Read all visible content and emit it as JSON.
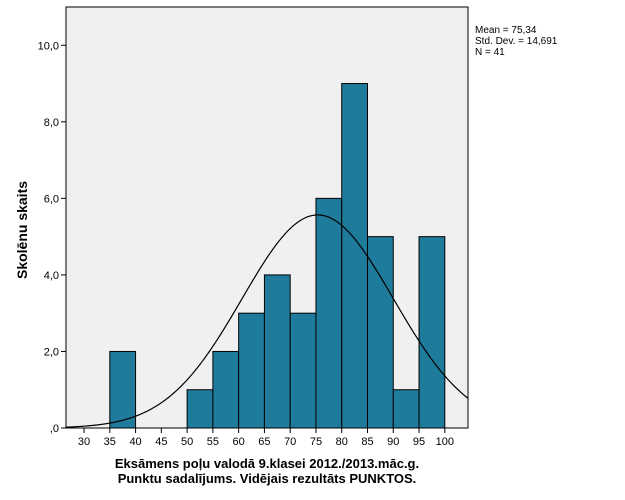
{
  "chart_data": {
    "type": "bar",
    "subtype": "histogram",
    "xlabel_lines": [
      "Eksāmens poļu valodā 9.klasei 2012./2013.māc.g.",
      "Punktu sadalījums. Vidējais rezultāts PUNKTOS."
    ],
    "ylabel": "Skolēnu skaits",
    "bins": [
      {
        "start": 35,
        "end": 40,
        "value": 2
      },
      {
        "start": 40,
        "end": 45,
        "value": 0
      },
      {
        "start": 45,
        "end": 50,
        "value": 0
      },
      {
        "start": 50,
        "end": 55,
        "value": 1
      },
      {
        "start": 55,
        "end": 60,
        "value": 2
      },
      {
        "start": 60,
        "end": 65,
        "value": 3
      },
      {
        "start": 65,
        "end": 70,
        "value": 4
      },
      {
        "start": 70,
        "end": 75,
        "value": 3
      },
      {
        "start": 75,
        "end": 80,
        "value": 6
      },
      {
        "start": 80,
        "end": 85,
        "value": 9
      },
      {
        "start": 85,
        "end": 90,
        "value": 5
      },
      {
        "start": 90,
        "end": 95,
        "value": 1
      },
      {
        "start": 95,
        "end": 100,
        "value": 5
      }
    ],
    "x_ticks": [
      "30",
      "35",
      "40",
      "45",
      "50",
      "55",
      "60",
      "65",
      "70",
      "75",
      "80",
      "85",
      "90",
      "95",
      "100"
    ],
    "y_ticks": [
      {
        "value": 0,
        "label": ",0"
      },
      {
        "value": 2,
        "label": "2,0"
      },
      {
        "value": 4,
        "label": "4,0"
      },
      {
        "value": 6,
        "label": "6,0"
      },
      {
        "value": 8,
        "label": "8,0"
      },
      {
        "value": 10,
        "label": "10,0"
      }
    ],
    "xlim": [
      26.5,
      104.5
    ],
    "ylim": [
      0,
      11
    ],
    "normal_curve": {
      "mean": 75.34,
      "sd": 14.691,
      "n": 41,
      "bin_width": 5
    },
    "stats_text": [
      "Mean = 75,34",
      "Std. Dev. = 14,691",
      "N = 41"
    ],
    "bar_color": "#1f7b9b",
    "background_color": "#f0f0f0",
    "curve_color": "#000000",
    "grid": false
  }
}
